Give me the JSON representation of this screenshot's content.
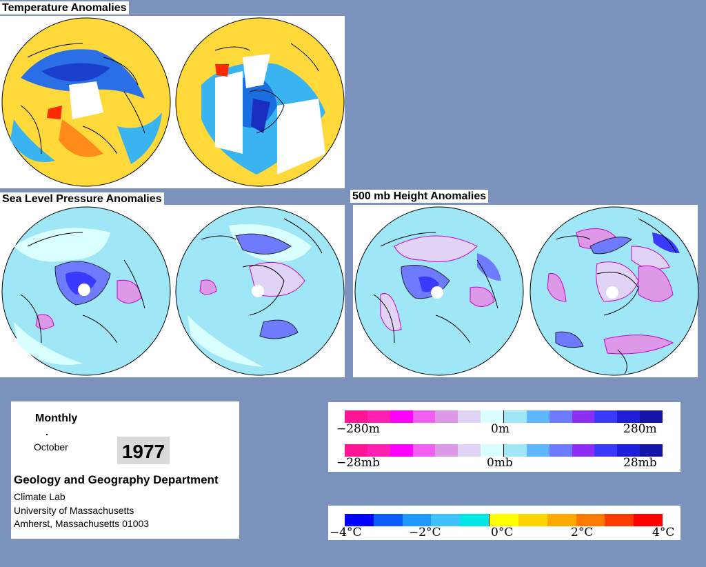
{
  "titles": {
    "temperature": "Temperature Anomalies",
    "slp": "Sea Level Pressure Anomalies",
    "height500": "500 mb Height Anomalies"
  },
  "info": {
    "period": "Monthly",
    "month": "October",
    "year": "1977",
    "department": "Geology and Geography Department",
    "lab": "Climate Lab",
    "university": "University of Massachusetts",
    "address": "Amherst, Massachusetts 01003"
  },
  "legend_height": {
    "labels": [
      "−280m",
      "0m",
      "280m"
    ]
  },
  "legend_pressure": {
    "labels": [
      "−28mb",
      "0mb",
      "28mb"
    ]
  },
  "legend_temperature": {
    "labels": [
      "−4°C",
      "−2°C",
      "0°C",
      "2°C",
      "4°C"
    ]
  },
  "colors": {
    "background": "#7b93bc",
    "pressure_scale": [
      "#ff1493",
      "#ff1fb0",
      "#ff00ff",
      "#f15ef1",
      "#dd99e8",
      "#e0d3f5",
      "#d9ffff",
      "#9fe6f7",
      "#5fb8ff",
      "#6f7bff",
      "#8c2ff2",
      "#3a3aff",
      "#1f1fd9",
      "#1414a8"
    ],
    "temperature_scale": [
      "#0000ff",
      "#0a5cff",
      "#1f9bff",
      "#3fc1ff",
      "#00e5e5",
      "#ffff00",
      "#ffd400",
      "#ffa800",
      "#ff7a00",
      "#ff3c00",
      "#ff0000"
    ]
  }
}
